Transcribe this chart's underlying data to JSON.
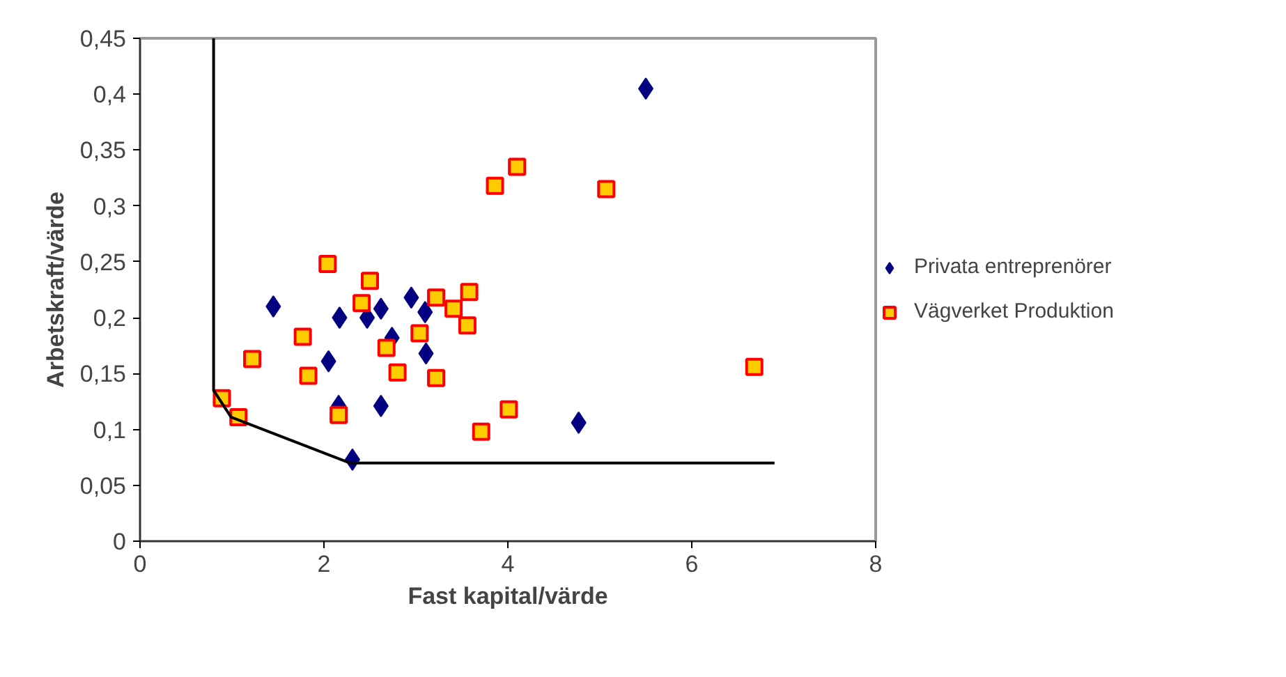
{
  "chart_data": {
    "type": "scatter",
    "xlabel": "Fast kapital/värde",
    "ylabel": "Arbetskraft/värde",
    "xlim": [
      0,
      8
    ],
    "ylim": [
      0,
      0.45
    ],
    "xticks": [
      0,
      2,
      4,
      6,
      8
    ],
    "yticks": [
      0,
      {
        "value": 0.05,
        "label": "0,05"
      },
      {
        "value": 0.1,
        "label": "0,1"
      },
      {
        "value": 0.15,
        "label": "0,15"
      },
      {
        "value": 0.2,
        "label": "0,2"
      },
      {
        "value": 0.25,
        "label": "0,25"
      },
      {
        "value": 0.3,
        "label": "0,3"
      },
      {
        "value": 0.35,
        "label": "0,35"
      },
      {
        "value": 0.4,
        "label": "0,4"
      },
      {
        "value": 0.45,
        "label": "0,45"
      }
    ],
    "grid": false,
    "legend": "right",
    "series": [
      {
        "name": "Privata entreprenörer",
        "marker": "diamond",
        "color": "#000080",
        "x": [
          5.5,
          1.45,
          2.17,
          2.47,
          2.62,
          2.95,
          3.1,
          2.74,
          3.11,
          2.05,
          2.16,
          2.62,
          2.31,
          4.77
        ],
        "values": [
          0.405,
          0.21,
          0.2,
          0.2,
          0.208,
          0.218,
          0.205,
          0.182,
          0.168,
          0.161,
          0.121,
          0.121,
          0.073,
          0.106
        ]
      },
      {
        "name": "Vägverket Produktion",
        "marker": "square",
        "color": "#ffcc00",
        "x": [
          0.89,
          1.07,
          1.22,
          1.77,
          1.83,
          2.04,
          2.16,
          2.41,
          2.5,
          2.68,
          2.8,
          3.04,
          3.22,
          3.22,
          3.41,
          3.56,
          3.58,
          3.86,
          4.1,
          3.71,
          4.01,
          5.07,
          6.68
        ],
        "values": [
          0.128,
          0.111,
          0.163,
          0.183,
          0.148,
          0.248,
          0.113,
          0.213,
          0.233,
          0.173,
          0.151,
          0.186,
          0.218,
          0.146,
          0.208,
          0.193,
          0.223,
          0.318,
          0.335,
          0.098,
          0.118,
          0.315,
          0.156
        ]
      },
      {
        "type": "line",
        "color": "#000000",
        "x": [
          0.8,
          0.8,
          0.99,
          2.28,
          6.9
        ],
        "values": [
          0.45,
          0.135,
          0.111,
          0.07,
          0.07
        ]
      }
    ]
  }
}
